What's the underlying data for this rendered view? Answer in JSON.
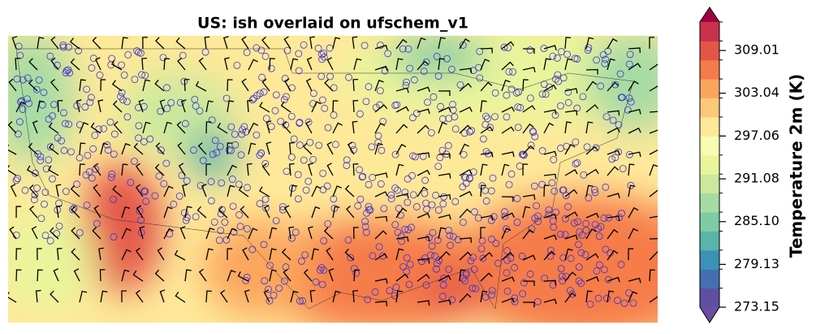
{
  "title": "US: ish overlaid on ufschem_v1",
  "colorbar": {
    "label": "Temperature 2m (K)",
    "lim": [
      273.15,
      313.0
    ],
    "ticks": [
      273.15,
      279.13,
      {
        "value": 285.1,
        "label": "285.10"
      },
      291.08,
      297.06,
      303.04,
      309.01
    ],
    "colors": [
      "#5e4fa2",
      "#4470b1",
      "#3b92b8",
      "#59b4aa",
      "#7ecba4",
      "#a6dba4",
      "#cae99d",
      "#e8f59b",
      "#f7fcb2",
      "#fee999",
      "#fdc877",
      "#fca55d",
      "#f67b4a",
      "#e45549",
      "#c9314c"
    ],
    "under_color": "#6a4ea0",
    "over_color": "#9e0142"
  }
}
